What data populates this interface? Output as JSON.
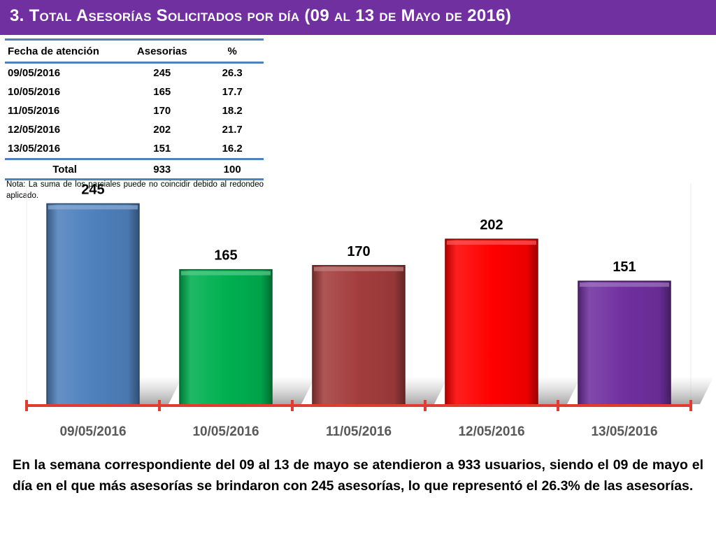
{
  "header": {
    "title": "3.  Total Asesorías Solicitados por día  (09 al 13 de Mayo de 2016)"
  },
  "table": {
    "columns": [
      "Fecha de atención",
      "Asesorias",
      "%"
    ],
    "rows": [
      [
        "09/05/2016",
        "245",
        "26.3"
      ],
      [
        "10/05/2016",
        "165",
        "17.7"
      ],
      [
        "11/05/2016",
        "170",
        "18.2"
      ],
      [
        "12/05/2016",
        "202",
        "21.7"
      ],
      [
        "13/05/2016",
        "151",
        "16.2"
      ]
    ],
    "total": [
      "Total",
      "933",
      "100"
    ],
    "note": "Nota: La suma de los parciales puede no coincidir debido al redondeo aplicado."
  },
  "chart_data": {
    "type": "bar",
    "categories": [
      "09/05/2016",
      "10/05/2016",
      "11/05/2016",
      "12/05/2016",
      "13/05/2016"
    ],
    "values": [
      245,
      165,
      170,
      202,
      151
    ],
    "data_labels": [
      "245",
      "165",
      "170",
      "202",
      "151"
    ],
    "bar_colors": [
      "#4f81bd",
      "#00b050",
      "#a33d3d",
      "#ff0000",
      "#7030a0"
    ],
    "axis_color": "#e03c31",
    "ylim": [
      0,
      270
    ],
    "grid": false,
    "legend": "none"
  },
  "summary": "En la semana correspondiente del 09 al 13 de mayo se  atendieron a 933 usuarios, siendo el 09 de mayo el día en el que más asesorías se brindaron con 245 asesorías, lo que representó el 26.3% de las asesorías.",
  "colors": {
    "title_bar": "#7030a0",
    "table_rule": "#4f81bd"
  }
}
